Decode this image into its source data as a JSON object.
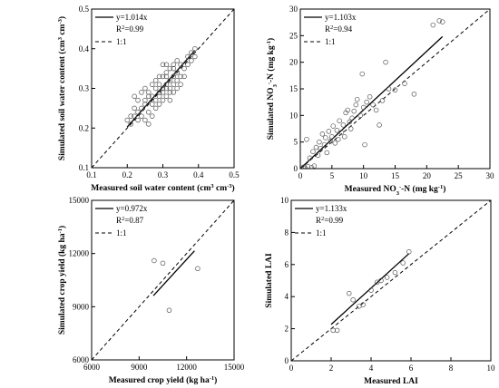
{
  "chart_data": [
    {
      "type": "scatter",
      "xlabel_parts": [
        {
          "t": "Measured soil water content (cm"
        },
        {
          "t": "3",
          "sup": true
        },
        {
          "t": " cm"
        },
        {
          "t": "-3",
          "sup": true
        },
        {
          "t": ")"
        }
      ],
      "ylabel_parts": [
        {
          "t": "Simulated soil water content (cm"
        },
        {
          "t": "3",
          "sup": true
        },
        {
          "t": " cm"
        },
        {
          "t": "-3",
          "sup": true
        },
        {
          "t": ")"
        }
      ],
      "xlim": [
        0.1,
        0.5
      ],
      "ylim": [
        0.1,
        0.5
      ],
      "xticks": [
        "0.1",
        "0.2",
        "0.3",
        "0.4",
        "0.5"
      ],
      "yticks": [
        "0.1",
        "0.2",
        "0.3",
        "0.4",
        "0.5"
      ],
      "xtick_values": [
        0.1,
        0.2,
        0.3,
        0.4,
        0.5
      ],
      "ytick_values": [
        0.1,
        0.2,
        0.3,
        0.4,
        0.5
      ],
      "legend": {
        "fit_label": "y=1.014x",
        "r2_label": "R",
        "r2_sup": "2",
        "r2_value": "=0.99",
        "line_label": "1:1"
      },
      "slope": 1.014,
      "fit_range": [
        0.2,
        0.39
      ],
      "points": [
        [
          0.2,
          0.22
        ],
        [
          0.21,
          0.23
        ],
        [
          0.21,
          0.21
        ],
        [
          0.22,
          0.25
        ],
        [
          0.22,
          0.28
        ],
        [
          0.22,
          0.23
        ],
        [
          0.23,
          0.24
        ],
        [
          0.23,
          0.27
        ],
        [
          0.23,
          0.22
        ],
        [
          0.24,
          0.29
        ],
        [
          0.24,
          0.25
        ],
        [
          0.24,
          0.23
        ],
        [
          0.25,
          0.3
        ],
        [
          0.25,
          0.27
        ],
        [
          0.25,
          0.26
        ],
        [
          0.25,
          0.22
        ],
        [
          0.26,
          0.28
        ],
        [
          0.26,
          0.24
        ],
        [
          0.26,
          0.29
        ],
        [
          0.26,
          0.21
        ],
        [
          0.27,
          0.31
        ],
        [
          0.27,
          0.26
        ],
        [
          0.27,
          0.28
        ],
        [
          0.27,
          0.23
        ],
        [
          0.28,
          0.3
        ],
        [
          0.28,
          0.27
        ],
        [
          0.28,
          0.32
        ],
        [
          0.28,
          0.25
        ],
        [
          0.29,
          0.33
        ],
        [
          0.29,
          0.29
        ],
        [
          0.29,
          0.26
        ],
        [
          0.29,
          0.31
        ],
        [
          0.29,
          0.28
        ],
        [
          0.3,
          0.36
        ],
        [
          0.3,
          0.3
        ],
        [
          0.3,
          0.27
        ],
        [
          0.3,
          0.33
        ],
        [
          0.3,
          0.29
        ],
        [
          0.31,
          0.34
        ],
        [
          0.31,
          0.31
        ],
        [
          0.31,
          0.28
        ],
        [
          0.31,
          0.36
        ],
        [
          0.31,
          0.3
        ],
        [
          0.31,
          0.33
        ],
        [
          0.32,
          0.32
        ],
        [
          0.32,
          0.35
        ],
        [
          0.32,
          0.29
        ],
        [
          0.32,
          0.3
        ],
        [
          0.32,
          0.27
        ],
        [
          0.33,
          0.36
        ],
        [
          0.33,
          0.33
        ],
        [
          0.33,
          0.31
        ],
        [
          0.33,
          0.29
        ],
        [
          0.33,
          0.35
        ],
        [
          0.34,
          0.37
        ],
        [
          0.34,
          0.32
        ],
        [
          0.34,
          0.34
        ],
        [
          0.34,
          0.3
        ],
        [
          0.35,
          0.33
        ],
        [
          0.35,
          0.36
        ],
        [
          0.35,
          0.31
        ],
        [
          0.36,
          0.35
        ],
        [
          0.36,
          0.33
        ],
        [
          0.37,
          0.38
        ],
        [
          0.37,
          0.36
        ],
        [
          0.38,
          0.39
        ],
        [
          0.38,
          0.37
        ],
        [
          0.39,
          0.4
        ],
        [
          0.39,
          0.38
        ]
      ]
    },
    {
      "type": "scatter",
      "xlabel_parts": [
        {
          "t": "Measured NO"
        },
        {
          "t": "3",
          "sub": true
        },
        {
          "t": "-",
          "sup": true
        },
        {
          "t": "-N (mg kg"
        },
        {
          "t": "-1",
          "sup": true
        },
        {
          "t": ")"
        }
      ],
      "ylabel_parts": [
        {
          "t": "Simulated NO"
        },
        {
          "t": "3",
          "sub": true
        },
        {
          "t": "-",
          "sup": true
        },
        {
          "t": "-N (mg kg"
        },
        {
          "t": "-1",
          "sup": true
        },
        {
          "t": ")"
        }
      ],
      "xlim": [
        0,
        30
      ],
      "ylim": [
        0,
        30
      ],
      "xticks": [
        "0",
        "5",
        "10",
        "15",
        "20",
        "25",
        "30"
      ],
      "yticks": [
        "0",
        "5",
        "10",
        "15",
        "20",
        "25",
        "30"
      ],
      "xtick_values": [
        0,
        5,
        10,
        15,
        20,
        25,
        30
      ],
      "ytick_values": [
        0,
        5,
        10,
        15,
        20,
        25,
        30
      ],
      "legend": {
        "fit_label": "y=1.103x",
        "r2_label": "R",
        "r2_sup": "2",
        "r2_value": "=0.94",
        "line_label": "1:1"
      },
      "slope": 1.103,
      "fit_range": [
        0,
        22.5
      ],
      "points": [
        [
          0.5,
          0.3
        ],
        [
          0.8,
          0.1
        ],
        [
          1.0,
          5.5
        ],
        [
          1.2,
          0.4
        ],
        [
          1.5,
          2.0
        ],
        [
          1.8,
          0.2
        ],
        [
          2.0,
          3.2
        ],
        [
          2.2,
          0.5
        ],
        [
          2.5,
          4.0
        ],
        [
          2.8,
          2.5
        ],
        [
          3.0,
          5.0
        ],
        [
          3.2,
          3.8
        ],
        [
          3.5,
          6.5
        ],
        [
          3.8,
          4.5
        ],
        [
          4.0,
          5.8
        ],
        [
          4.2,
          3.0
        ],
        [
          4.5,
          7.0
        ],
        [
          4.8,
          5.2
        ],
        [
          5.0,
          6.0
        ],
        [
          5.2,
          8.0
        ],
        [
          5.5,
          4.8
        ],
        [
          5.8,
          7.2
        ],
        [
          6.0,
          5.5
        ],
        [
          6.2,
          9.0
        ],
        [
          6.5,
          6.8
        ],
        [
          6.8,
          8.2
        ],
        [
          7.0,
          6.0
        ],
        [
          7.2,
          10.5
        ],
        [
          7.5,
          11.0
        ],
        [
          7.8,
          8.8
        ],
        [
          8.0,
          7.5
        ],
        [
          8.2,
          9.5
        ],
        [
          8.5,
          10.8
        ],
        [
          8.8,
          12.0
        ],
        [
          9.0,
          13.0
        ],
        [
          9.5,
          10.0
        ],
        [
          10.0,
          11.5
        ],
        [
          10.5,
          12.5
        ],
        [
          11.0,
          13.5
        ],
        [
          11.5,
          12.0
        ],
        [
          12.0,
          11.0
        ],
        [
          13.0,
          12.8
        ],
        [
          13.5,
          20.0
        ],
        [
          14.0,
          15.0
        ],
        [
          15.0,
          14.8
        ],
        [
          9.8,
          17.8
        ],
        [
          10.2,
          4.5
        ],
        [
          18.0,
          14.0
        ],
        [
          21.0,
          27.0
        ],
        [
          22.0,
          27.8
        ],
        [
          22.5,
          27.6
        ],
        [
          12.5,
          8.2
        ],
        [
          16.5,
          16.0
        ]
      ]
    },
    {
      "type": "scatter",
      "xlabel_parts": [
        {
          "t": "Measured crop yield (kg ha"
        },
        {
          "t": "-1",
          "sup": true
        },
        {
          "t": ")"
        }
      ],
      "ylabel_parts": [
        {
          "t": "Simulated crop yield (kg ha"
        },
        {
          "t": "-1",
          "sup": true
        },
        {
          "t": ")"
        }
      ],
      "xlim": [
        6000,
        15000
      ],
      "ylim": [
        6000,
        15000
      ],
      "xticks": [
        "6000",
        "9000",
        "12000",
        "15000"
      ],
      "yticks": [
        "6000",
        "9000",
        "12000",
        "15000"
      ],
      "xtick_values": [
        6000,
        9000,
        12000,
        15000
      ],
      "ytick_values": [
        6000,
        9000,
        12000,
        15000
      ],
      "legend": {
        "fit_label": "y=0.972x",
        "r2_label": "R",
        "r2_sup": "2",
        "r2_value": "=0.87",
        "line_label": "1:1"
      },
      "slope": 0.972,
      "fit_range": [
        9900,
        12500
      ],
      "points": [
        [
          9950,
          11600
        ],
        [
          10500,
          11450
        ],
        [
          10900,
          8800
        ],
        [
          12700,
          11150
        ]
      ]
    },
    {
      "type": "scatter",
      "xlabel_parts": [
        {
          "t": "Measured LAI"
        }
      ],
      "ylabel_parts": [
        {
          "t": "Simulated LAI"
        }
      ],
      "xlim": [
        0,
        10
      ],
      "ylim": [
        0,
        10
      ],
      "xticks": [
        "0",
        "2",
        "4",
        "6",
        "8",
        "10"
      ],
      "yticks": [
        "0",
        "2",
        "4",
        "6",
        "8",
        "10"
      ],
      "xtick_values": [
        0,
        2,
        4,
        6,
        8,
        10
      ],
      "ytick_values": [
        0,
        2,
        4,
        6,
        8,
        10
      ],
      "legend": {
        "fit_label": "y=1.133x",
        "r2_label": "R",
        "r2_sup": "2",
        "r2_value": "=0.99",
        "line_label": "1:1"
      },
      "slope": 1.133,
      "fit_range": [
        2.0,
        5.9
      ],
      "points": [
        [
          2.1,
          1.9
        ],
        [
          2.3,
          1.9
        ],
        [
          2.9,
          4.2
        ],
        [
          3.1,
          3.8
        ],
        [
          3.4,
          3.4
        ],
        [
          3.6,
          3.5
        ],
        [
          4.0,
          4.4
        ],
        [
          4.3,
          4.9
        ],
        [
          4.5,
          5.0
        ],
        [
          4.8,
          5.2
        ],
        [
          5.2,
          5.5
        ],
        [
          5.6,
          6.1
        ],
        [
          5.9,
          6.8
        ]
      ]
    }
  ]
}
